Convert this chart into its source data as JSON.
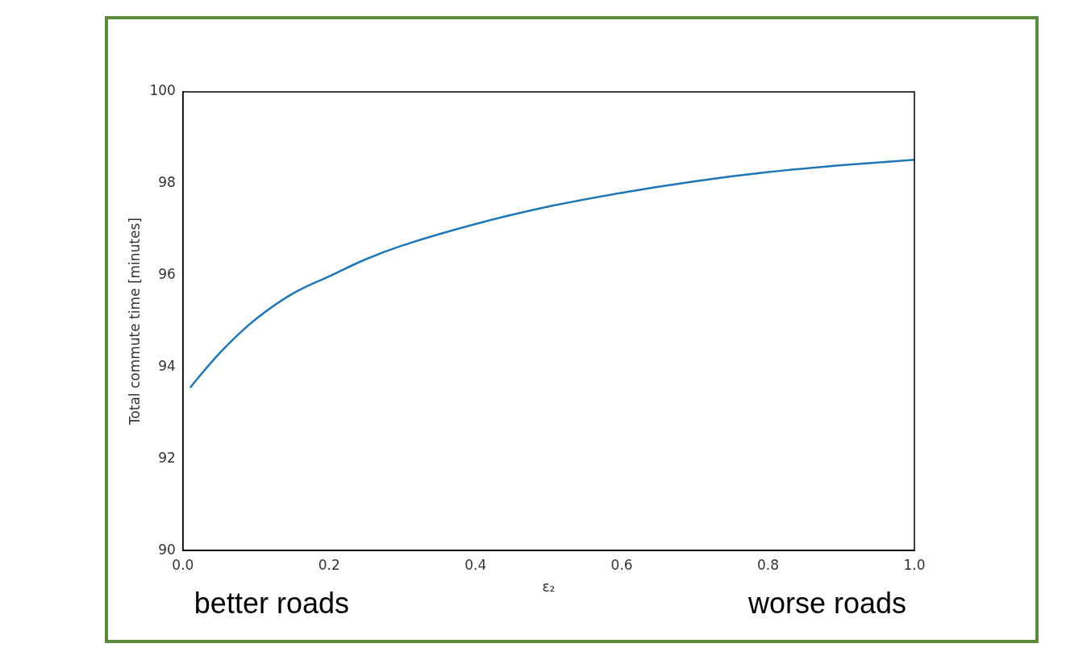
{
  "chart_data": {
    "type": "line",
    "xlabel": "ε₂",
    "ylabel": "Total commute time [minutes]",
    "x": [
      0.01,
      0.02,
      0.05,
      0.075,
      0.1,
      0.15,
      0.2,
      0.25,
      0.3,
      0.4,
      0.5,
      0.6,
      0.7,
      0.8,
      0.9,
      1.0
    ],
    "series": [
      {
        "color": "#1f77b4",
        "values": [
          93.55,
          93.75,
          94.3,
          94.7,
          95.05,
          95.6,
          95.98,
          96.35,
          96.65,
          97.12,
          97.5,
          97.8,
          98.05,
          98.25,
          98.4,
          98.52
        ]
      }
    ],
    "xlim": [
      0,
      1
    ],
    "xticks": [
      {
        "value": 0,
        "label": "0.0"
      },
      0.2,
      0.4,
      0.6,
      0.8,
      {
        "value": 1,
        "label": "1.0"
      }
    ],
    "ylim": [
      90,
      100
    ],
    "yticks": [
      90,
      92,
      94,
      96,
      98,
      100
    ],
    "grid": false,
    "legend": false,
    "marker": "none",
    "line_style": "solid",
    "annotations": [
      "better roads",
      "worse roads"
    ]
  }
}
